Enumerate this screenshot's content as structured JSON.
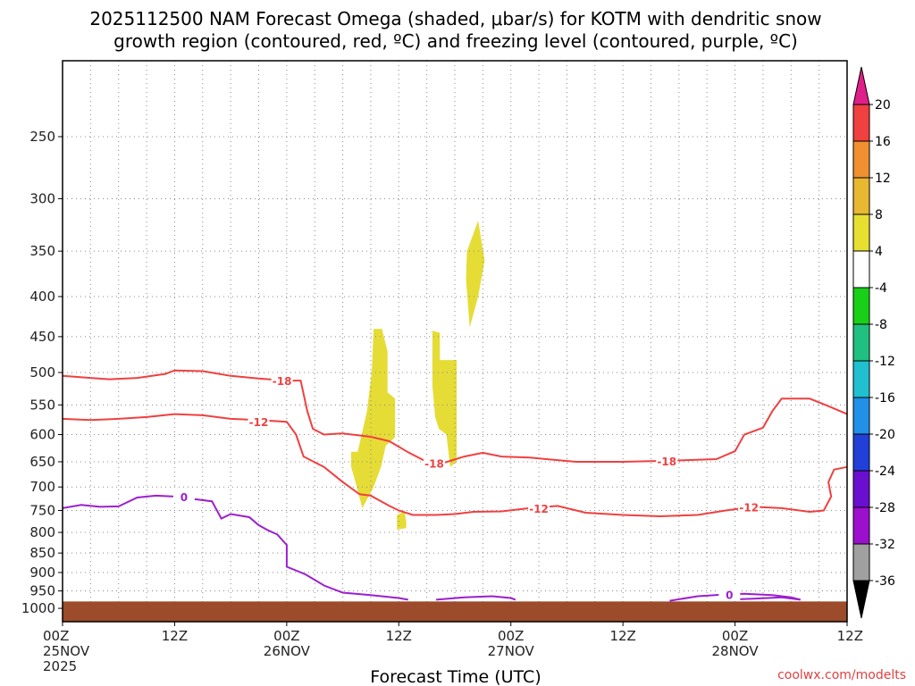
{
  "chart_data": {
    "type": "time-height cross section",
    "title_line1": "2025112500 NAM Forecast Omega (shaded, μbar/s) for KOTM with dendritic snow",
    "title_line2": "growth region (contoured, red, ºC) and freezing level (contoured, purple, ºC)",
    "xlabel": "Forecast Time (UTC)",
    "credit": "coolwx.com/modelts",
    "x_range_hours": [
      0,
      84
    ],
    "y_range_hPa": [
      200,
      1040
    ],
    "y_ticks": [
      {
        "value": 250,
        "label": "250"
      },
      {
        "value": 300,
        "label": "300"
      },
      {
        "value": 350,
        "label": "350"
      },
      {
        "value": 400,
        "label": "400"
      },
      {
        "value": 450,
        "label": "450"
      },
      {
        "value": 500,
        "label": "500"
      },
      {
        "value": 550,
        "label": "550"
      },
      {
        "value": 600,
        "label": "600"
      },
      {
        "value": 650,
        "label": "650"
      },
      {
        "value": 700,
        "label": "700"
      },
      {
        "value": 750,
        "label": "750"
      },
      {
        "value": 800,
        "label": "800"
      },
      {
        "value": 850,
        "label": "850"
      },
      {
        "value": 900,
        "label": "900"
      },
      {
        "value": 950,
        "label": "950"
      },
      {
        "value": 1000,
        "label": "1000"
      }
    ],
    "x_ticks": [
      {
        "hour": 0,
        "label": "00Z",
        "sub": "25NOV",
        "sub2": "2025"
      },
      {
        "hour": 12,
        "label": "12Z",
        "sub": "",
        "sub2": ""
      },
      {
        "hour": 24,
        "label": "00Z",
        "sub": "26NOV",
        "sub2": ""
      },
      {
        "hour": 36,
        "label": "12Z",
        "sub": "",
        "sub2": ""
      },
      {
        "hour": 48,
        "label": "00Z",
        "sub": "27NOV",
        "sub2": ""
      },
      {
        "hour": 60,
        "label": "12Z",
        "sub": "",
        "sub2": ""
      },
      {
        "hour": 72,
        "label": "00Z",
        "sub": "28NOV",
        "sub2": ""
      },
      {
        "hour": 84,
        "label": "12Z",
        "sub": "",
        "sub2": ""
      }
    ],
    "colorbar": {
      "levels": [
        -36,
        -32,
        -28,
        -24,
        -20,
        -16,
        -12,
        -8,
        -4,
        4,
        8,
        12,
        16,
        20
      ],
      "labels": [
        "-36",
        "-32",
        "-28",
        "-24",
        "-20",
        "-16",
        "-12",
        "-8",
        "-4",
        "4",
        "8",
        "12",
        "16",
        "20"
      ],
      "colors": [
        "#a0a0a0",
        "#9c0fcd",
        "#6a0fcf",
        "#2040d8",
        "#2090e8",
        "#20c0d0",
        "#20c080",
        "#18d018",
        "#ffffff",
        "#e8e030",
        "#e8b830",
        "#f09030",
        "#f04040"
      ],
      "under_color": "#000000",
      "over_color": "#e0208a"
    },
    "omega_regions": [
      {
        "value_range": "4 to 8",
        "color": "#e6dc36",
        "outline": [
          [
            31.6,
            631
          ],
          [
            32.1,
            595
          ],
          [
            32.6,
            560
          ],
          [
            33.1,
            500
          ],
          [
            33.3,
            440
          ],
          [
            34.2,
            440
          ],
          [
            34.8,
            470
          ],
          [
            34.8,
            530
          ],
          [
            35.6,
            540
          ],
          [
            35.6,
            605
          ],
          [
            34.6,
            620
          ],
          [
            34.1,
            660
          ],
          [
            33.3,
            700
          ],
          [
            32.1,
            745
          ],
          [
            31.5,
            700
          ],
          [
            30.9,
            660
          ],
          [
            30.9,
            631
          ]
        ]
      },
      {
        "value_range": "4 to 8",
        "color": "#e6dc36",
        "outline": [
          [
            35.8,
            760
          ],
          [
            36.6,
            752
          ],
          [
            36.8,
            775
          ],
          [
            36.8,
            790
          ],
          [
            35.8,
            793
          ]
        ]
      },
      {
        "value_range": "4 to 8",
        "color": "#e6dc36",
        "outline": [
          [
            39.6,
            442
          ],
          [
            40.4,
            445
          ],
          [
            40.4,
            482
          ],
          [
            41.8,
            482
          ],
          [
            42.2,
            482
          ],
          [
            42.2,
            650
          ],
          [
            41.5,
            660
          ],
          [
            41.1,
            600
          ],
          [
            40.3,
            590
          ],
          [
            39.9,
            570
          ],
          [
            39.6,
            520
          ]
        ]
      },
      {
        "value_range": "4 to 8",
        "color": "#e6dc36",
        "outline": [
          [
            43.3,
            350
          ],
          [
            44.5,
            320
          ],
          [
            45.2,
            360
          ],
          [
            44.5,
            400
          ],
          [
            43.6,
            438
          ],
          [
            43.2,
            380
          ]
        ]
      }
    ],
    "dendritic_contours": [
      {
        "label": "-18",
        "color": "#f04040",
        "points": [
          [
            0,
            505
          ],
          [
            3,
            508
          ],
          [
            5,
            510
          ],
          [
            8,
            508
          ],
          [
            11,
            502
          ],
          [
            12,
            497
          ],
          [
            15,
            498
          ],
          [
            18,
            505
          ],
          [
            21,
            509
          ],
          [
            24,
            512
          ],
          [
            25.5,
            512
          ],
          [
            26.2,
            560
          ],
          [
            26.8,
            590
          ],
          [
            28,
            600
          ],
          [
            30,
            598
          ],
          [
            33,
            604
          ],
          [
            35,
            612
          ],
          [
            37,
            632
          ],
          [
            39,
            650
          ],
          [
            41,
            651
          ],
          [
            43,
            640
          ],
          [
            45,
            633
          ],
          [
            47,
            640
          ],
          [
            50,
            642
          ],
          [
            55,
            650
          ],
          [
            60,
            650
          ],
          [
            65,
            648
          ],
          [
            70,
            645
          ],
          [
            72,
            630
          ],
          [
            73,
            600
          ],
          [
            75,
            588
          ],
          [
            76,
            560
          ],
          [
            77,
            540
          ],
          [
            80,
            540
          ],
          [
            82,
            552
          ],
          [
            84,
            565
          ]
        ],
        "label_at": [
          [
            23.5,
            512
          ],
          [
            39.8,
            653
          ],
          [
            64.7,
            648
          ]
        ]
      },
      {
        "label": "-12",
        "color": "#f04040",
        "points": [
          [
            0,
            573
          ],
          [
            3,
            575
          ],
          [
            6,
            573
          ],
          [
            9,
            570
          ],
          [
            12,
            565
          ],
          [
            15,
            567
          ],
          [
            18,
            573
          ],
          [
            21,
            575
          ],
          [
            24,
            578
          ],
          [
            25,
            600
          ],
          [
            25.8,
            640
          ],
          [
            28,
            660
          ],
          [
            30,
            690
          ],
          [
            31.8,
            715
          ],
          [
            33,
            718
          ],
          [
            35,
            740
          ],
          [
            36,
            750
          ],
          [
            37.5,
            760
          ],
          [
            40,
            760
          ],
          [
            42,
            758
          ],
          [
            44,
            753
          ],
          [
            47,
            752
          ],
          [
            50,
            745
          ],
          [
            53,
            740
          ],
          [
            56,
            755
          ],
          [
            60,
            760
          ],
          [
            64,
            763
          ],
          [
            68,
            760
          ],
          [
            71,
            750
          ],
          [
            74,
            742
          ],
          [
            77,
            745
          ],
          [
            80,
            753
          ],
          [
            81.5,
            750
          ],
          [
            82.3,
            720
          ],
          [
            82,
            690
          ],
          [
            82.6,
            665
          ],
          [
            84,
            660
          ]
        ],
        "label_at": [
          [
            21,
            578
          ],
          [
            51,
            745
          ],
          [
            73.5,
            742
          ]
        ]
      }
    ],
    "freezing_level": {
      "label": "0",
      "color": "#9c1fcf",
      "points": [
        [
          0,
          745
        ],
        [
          2,
          738
        ],
        [
          4,
          742
        ],
        [
          6,
          741
        ],
        [
          8,
          722
        ],
        [
          10,
          718
        ],
        [
          12,
          720
        ],
        [
          14,
          725
        ],
        [
          16,
          730
        ],
        [
          17,
          768
        ],
        [
          18,
          758
        ],
        [
          20,
          765
        ],
        [
          21,
          783
        ],
        [
          22,
          795
        ],
        [
          23,
          805
        ],
        [
          24,
          830
        ],
        [
          24,
          885
        ],
        [
          26,
          905
        ],
        [
          28,
          935
        ],
        [
          30,
          955
        ],
        [
          33,
          962
        ],
        [
          36,
          970
        ],
        [
          37,
          975
        ]
      ],
      "segments": [
        [
          [
            40,
            975
          ],
          [
            43,
            968
          ],
          [
            46,
            965
          ],
          [
            48,
            970
          ],
          [
            48.5,
            975
          ]
        ],
        [
          [
            65,
            978
          ],
          [
            68,
            965
          ],
          [
            71,
            960
          ],
          [
            73,
            958
          ],
          [
            76,
            962
          ],
          [
            78,
            968
          ],
          [
            79,
            975
          ]
        ],
        [
          [
            71,
            975
          ],
          [
            74,
            972
          ],
          [
            77,
            968
          ],
          [
            79,
            975
          ]
        ]
      ],
      "label_at": [
        [
          13,
          720
        ],
        [
          71.4,
          960
        ]
      ]
    },
    "ground": {
      "top_hPa": 980,
      "color": "#9c4b2b"
    }
  }
}
